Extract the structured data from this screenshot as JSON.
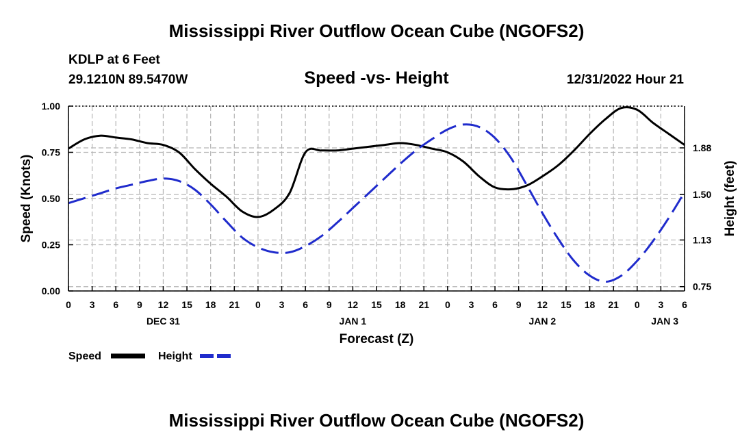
{
  "header": {
    "title_top": "Mississippi River Outflow Ocean Cube (NGOFS2)",
    "title_bottom": "Mississippi River Outflow Ocean Cube (NGOFS2)",
    "station": "KDLP at 6 Feet",
    "coords": "29.1210N  89.5470W",
    "subtitle": "Speed -vs- Height",
    "stamp": "12/31/2022 Hour 21"
  },
  "colors": {
    "speed": "#000000",
    "height": "#1f2bcc",
    "grid": "#b4b4b4"
  },
  "chart_data": {
    "type": "line",
    "title": "Speed -vs- Height",
    "xlabel": "Forecast (Z)",
    "ylabel": "Speed (Knots)",
    "y2label": "Height (feet)",
    "xlim": [
      0,
      78
    ],
    "ylim": [
      0,
      1
    ],
    "y2lim": [
      0.715,
      2.22
    ],
    "x_ticks": [
      0,
      3,
      6,
      9,
      12,
      15,
      18,
      21,
      24,
      27,
      30,
      33,
      36,
      39,
      42,
      45,
      48,
      51,
      54,
      57,
      60,
      63,
      66,
      69,
      72,
      75,
      78
    ],
    "x_tick_labels": [
      "0",
      "3",
      "6",
      "9",
      "12",
      "15",
      "18",
      "21",
      "0",
      "3",
      "6",
      "9",
      "12",
      "15",
      "18",
      "21",
      "0",
      "3",
      "6",
      "9",
      "12",
      "15",
      "18",
      "21",
      "0",
      "3",
      "6"
    ],
    "day_labels": [
      {
        "x": 12,
        "label": "DEC 31"
      },
      {
        "x": 36,
        "label": "JAN 1"
      },
      {
        "x": 60,
        "label": "JAN 2"
      },
      {
        "x": 75.5,
        "label": "JAN 3"
      }
    ],
    "y_ticks": [
      0,
      0.25,
      0.5,
      0.75,
      1.0
    ],
    "y_tick_labels": [
      "0.00",
      "0.25",
      "0.50",
      "0.75",
      "1.00"
    ],
    "y2_ticks": [
      0.75,
      1.13,
      1.5,
      1.88
    ],
    "y2_tick_labels": [
      "0.75",
      "1.13",
      "1.50",
      "1.88"
    ],
    "grid": true,
    "legend_position": "bottom-left",
    "series": [
      {
        "name": "Speed",
        "axis": "left",
        "style": "solid",
        "x": [
          0,
          2,
          4,
          6,
          8,
          10,
          12,
          14,
          16,
          18,
          20,
          22,
          24,
          26,
          28,
          30,
          32,
          34,
          36,
          38,
          40,
          42,
          44,
          46,
          48,
          50,
          52,
          54,
          56,
          58,
          60,
          62,
          64,
          66,
          68,
          70,
          72,
          74,
          76,
          78
        ],
        "values": [
          0.77,
          0.82,
          0.84,
          0.83,
          0.82,
          0.8,
          0.79,
          0.75,
          0.66,
          0.58,
          0.51,
          0.43,
          0.4,
          0.44,
          0.53,
          0.75,
          0.76,
          0.76,
          0.77,
          0.78,
          0.79,
          0.8,
          0.79,
          0.77,
          0.75,
          0.7,
          0.62,
          0.56,
          0.55,
          0.57,
          0.62,
          0.68,
          0.76,
          0.85,
          0.93,
          0.99,
          0.98,
          0.91,
          0.85,
          0.79
        ]
      },
      {
        "name": "Height",
        "axis": "right",
        "style": "dashed",
        "x": [
          0,
          2,
          4,
          6,
          8,
          10,
          12,
          14,
          16,
          18,
          20,
          22,
          24,
          26,
          28,
          30,
          32,
          34,
          36,
          38,
          40,
          42,
          44,
          46,
          48,
          50,
          52,
          54,
          56,
          58,
          60,
          62,
          64,
          66,
          68,
          70,
          72,
          74,
          76,
          78
        ],
        "values": [
          1.43,
          1.47,
          1.51,
          1.55,
          1.58,
          1.61,
          1.63,
          1.61,
          1.54,
          1.42,
          1.28,
          1.15,
          1.07,
          1.03,
          1.03,
          1.08,
          1.16,
          1.27,
          1.39,
          1.51,
          1.63,
          1.75,
          1.86,
          1.95,
          2.03,
          2.07,
          2.05,
          1.96,
          1.8,
          1.58,
          1.35,
          1.14,
          0.96,
          0.84,
          0.79,
          0.84,
          0.96,
          1.12,
          1.31,
          1.52
        ]
      }
    ]
  },
  "legend": {
    "speed_label": "Speed",
    "height_label": "Height"
  }
}
